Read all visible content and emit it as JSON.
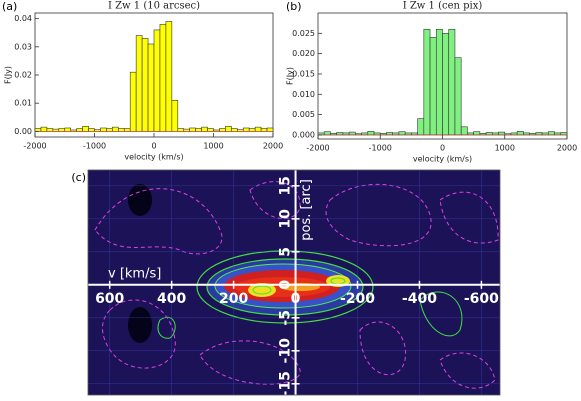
{
  "chart_data": [
    {
      "type": "histogram",
      "panel": "(a)",
      "title": "I Zw 1 (10 arcsec)",
      "xlabel": "velocity (km/s)",
      "ylabel": "F(Jy)",
      "xlim": [
        -2000,
        2000
      ],
      "xticks": [
        -2000,
        -1000,
        0,
        1000,
        2000
      ],
      "ylim": [
        -0.002,
        0.042
      ],
      "yticks": [
        {
          "value": 0,
          "label": "0.00"
        },
        {
          "value": 0.01,
          "label": "0.01"
        },
        {
          "value": 0.02,
          "label": "0.02"
        },
        {
          "value": 0.03,
          "label": "0.03"
        },
        {
          "value": 0.04,
          "label": "0.04"
        }
      ],
      "color": "#ffff00",
      "bins": [
        -2000,
        -1900,
        -1800,
        -1700,
        -1600,
        -1500,
        -1400,
        -1300,
        -1200,
        -1100,
        -1000,
        -900,
        -800,
        -700,
        -600,
        -500,
        -400,
        -300,
        -200,
        -100,
        0,
        100,
        200,
        300,
        400,
        500,
        600,
        700,
        800,
        900,
        1000,
        1100,
        1200,
        1300,
        1400,
        1500,
        1600,
        1700,
        1800,
        1900,
        2000
      ],
      "values": [
        0.001,
        0.0015,
        0.001,
        0.0008,
        0.001,
        0.0012,
        0.0005,
        0.001,
        0.0018,
        0.001,
        0.0006,
        0.0012,
        0.001,
        0.0015,
        0.001,
        0.001,
        0.021,
        0.034,
        0.033,
        0.031,
        0.036,
        0.038,
        0.039,
        0.011,
        0.001,
        0.0008,
        0.0012,
        0.001,
        0.0015,
        0.001,
        0.0005,
        0.001,
        0.0018,
        0.001,
        0.0006,
        0.0012,
        0.001,
        0.0015,
        0.001,
        0.0012
      ]
    },
    {
      "type": "histogram",
      "panel": "(b)",
      "title": "I Zw 1 (cen pix)",
      "xlabel": "velocity (km/s)",
      "ylabel": "F(Jy)",
      "xlim": [
        -2000,
        2000
      ],
      "xticks": [
        -2000,
        -1000,
        0,
        1000,
        2000
      ],
      "ylim": [
        -0.001,
        0.03
      ],
      "yticks": [
        {
          "value": 0,
          "label": "0.000"
        },
        {
          "value": 0.005,
          "label": "0.005"
        },
        {
          "value": 0.01,
          "label": "0.010"
        },
        {
          "value": 0.015,
          "label": "0.015"
        },
        {
          "value": 0.02,
          "label": "0.020"
        },
        {
          "value": 0.025,
          "label": "0.025"
        }
      ],
      "color": "#80f080",
      "bins": [
        -2000,
        -1900,
        -1800,
        -1700,
        -1600,
        -1500,
        -1400,
        -1300,
        -1200,
        -1100,
        -1000,
        -900,
        -800,
        -700,
        -600,
        -500,
        -400,
        -300,
        -200,
        -100,
        0,
        100,
        200,
        300,
        400,
        500,
        600,
        700,
        800,
        900,
        1000,
        1100,
        1200,
        1300,
        1400,
        1500,
        1600,
        1700,
        1800,
        1900,
        2000
      ],
      "values": [
        0.0005,
        0.0008,
        0.0004,
        0.0006,
        0.0005,
        0.0007,
        0.0003,
        0.0005,
        0.0009,
        0.0005,
        0.0004,
        0.0006,
        0.0005,
        0.0008,
        0.0005,
        0.0005,
        0.004,
        0.026,
        0.024,
        0.026,
        0.025,
        0.026,
        0.019,
        0.002,
        0.0005,
        0.0008,
        0.0004,
        0.0006,
        0.0005,
        0.0007,
        0.0003,
        0.0005,
        0.0009,
        0.0005,
        0.0004,
        0.0006,
        0.0005,
        0.0008,
        0.0005,
        0.0006
      ]
    },
    {
      "type": "image",
      "panel": "(c)",
      "xlabel": "v [km/s]",
      "ylabel": "pos. [arc]",
      "xlim": [
        670,
        -660
      ],
      "xticks": [
        600,
        400,
        200,
        0,
        -200,
        -400,
        -600
      ],
      "ylim": [
        -16.7,
        17.4
      ],
      "yticks": [
        15,
        10,
        5,
        0,
        -5,
        -10,
        -15
      ],
      "grid": true
    }
  ]
}
